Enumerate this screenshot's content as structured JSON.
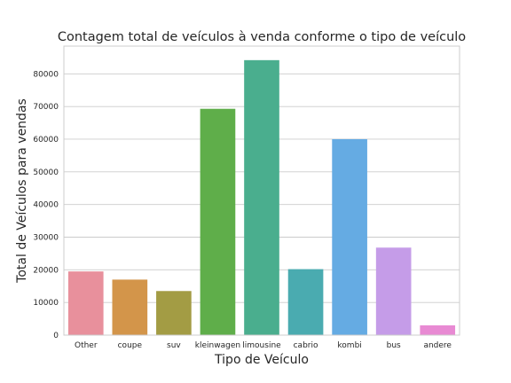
{
  "chart_data": {
    "type": "bar",
    "title": "Contagem total de veículos à venda conforme o tipo de veículo",
    "xlabel": "Tipo de Veículo",
    "ylabel": "Total de Veículos para vendas",
    "categories": [
      "Other",
      "coupe",
      "suv",
      "kleinwagen",
      "limousine",
      "cabrio",
      "kombi",
      "bus",
      "andere"
    ],
    "values": [
      19500,
      17000,
      13500,
      69300,
      84200,
      20200,
      60000,
      26800,
      3000
    ],
    "colors": [
      "#e8909c",
      "#d3954a",
      "#a39c44",
      "#5fae4a",
      "#4aae8e",
      "#4aabb0",
      "#65abe3",
      "#c59ce8",
      "#e88ad3"
    ],
    "ylim": [
      0,
      88500
    ],
    "yticks": [
      0,
      10000,
      20000,
      30000,
      40000,
      50000,
      60000,
      70000,
      80000
    ],
    "grid": true,
    "legend": "none"
  }
}
